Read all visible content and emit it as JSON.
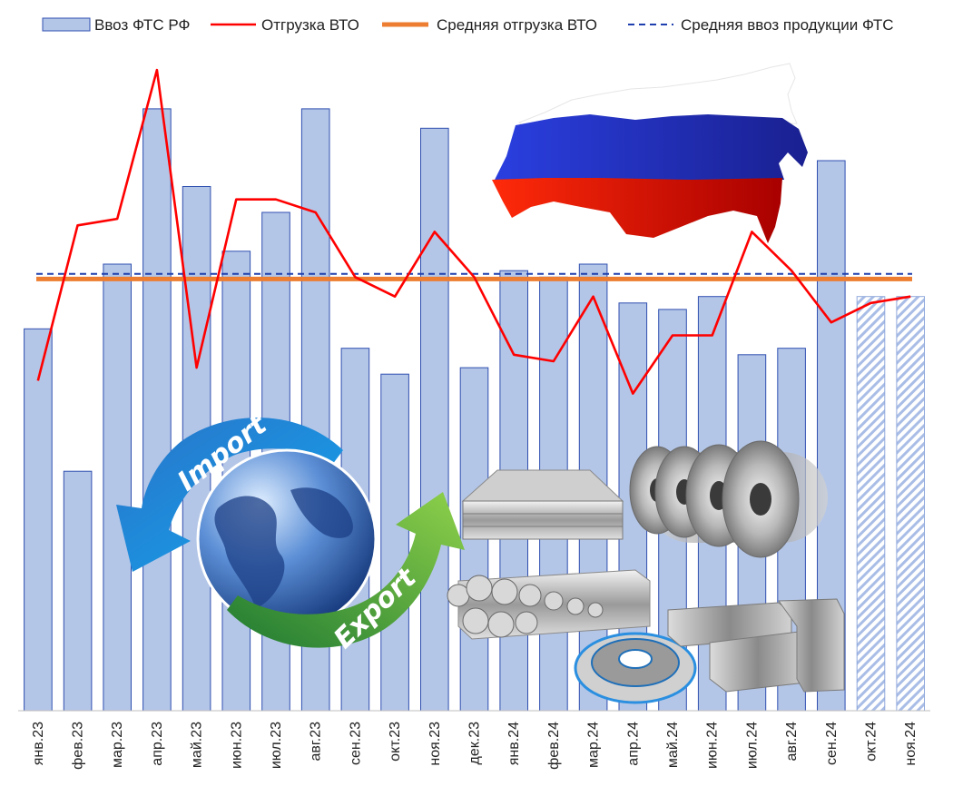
{
  "chart_data": {
    "type": "bar",
    "categories": [
      "янв.23",
      "фев.23",
      "мар.23",
      "апр.23",
      "май.23",
      "июн.23",
      "июл.23",
      "авг.23",
      "сен.23",
      "окт.23",
      "ноя.23",
      "дек.23",
      "янв.24",
      "фев.24",
      "мар.24",
      "апр.24",
      "май.24",
      "июн.24",
      "июл.24",
      "авг.24",
      "сен.24",
      "окт.24",
      "ноя.24"
    ],
    "forecast_from_index": 21,
    "ylim": [
      0,
      100
    ],
    "series": [
      {
        "name": "Ввоз ФТС РФ",
        "kind": "bar",
        "color": "#b4c6e7",
        "border": "#2f4fb0",
        "values": [
          59,
          37,
          69,
          93,
          81,
          71,
          77,
          93,
          56,
          52,
          90,
          53,
          68,
          67,
          69,
          63,
          62,
          64,
          55,
          56,
          85,
          64,
          64
        ]
      },
      {
        "name": "Отгрузка ВТО",
        "kind": "line",
        "color": "#ff0000",
        "values": [
          51,
          75,
          76,
          99,
          53,
          79,
          79,
          77,
          67,
          64,
          74,
          67,
          55,
          54,
          64,
          49,
          58,
          58,
          74,
          68,
          60,
          63,
          64
        ]
      },
      {
        "name": "Средняя отгрузка ВТО",
        "kind": "hline",
        "color": "#ed7d31",
        "value": 66.7
      },
      {
        "name": "Средняя ввоз продукции ФТС",
        "kind": "hline-dashed",
        "color": "#1f3fae",
        "value": 67.5
      }
    ]
  },
  "illustrations": {
    "globe": {
      "import_word": "Import",
      "export_word": "Export"
    }
  }
}
